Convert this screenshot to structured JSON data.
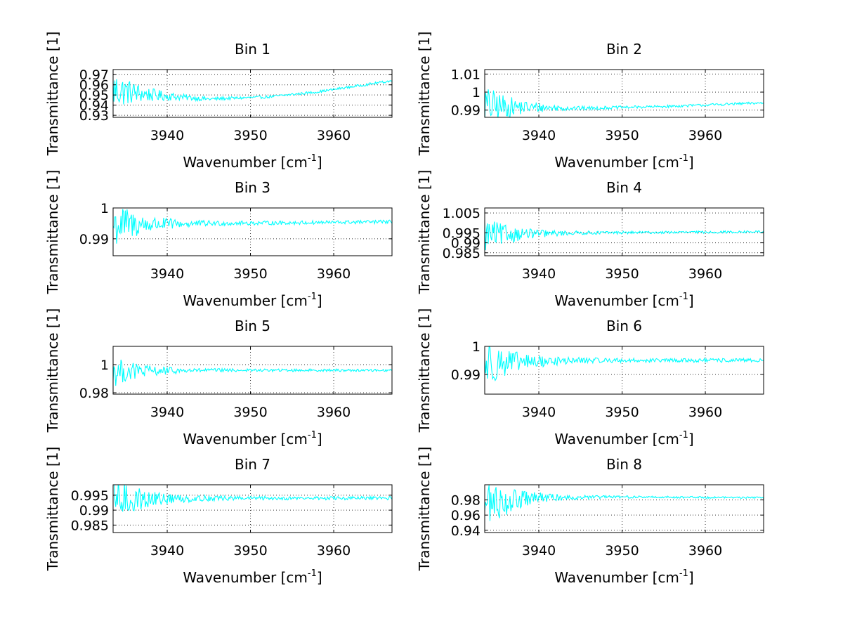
{
  "figure": {
    "background": "#ffffff",
    "line_color": "#00ffff"
  },
  "chart_data": [
    {
      "type": "line",
      "id": "bin1",
      "title": "Bin 1",
      "xlabel": "Wavenumber [cm",
      "xlabel_sup": "-1",
      "xlabel_end": "]",
      "ylabel": "Transmittance [1]",
      "xlim": [
        3933.5,
        3967
      ],
      "ylim": [
        0.928,
        0.975
      ],
      "xticks": [
        3940,
        3950,
        3960
      ],
      "xtick_labels": [
        "3940",
        "3950",
        "3960"
      ],
      "yticks": [
        0.93,
        0.94,
        0.95,
        0.96,
        0.97
      ],
      "ytick_labels": [
        "0.93",
        "0.94",
        "0.95",
        "0.96",
        "0.97"
      ],
      "grid": true,
      "trend": [
        [
          3933.5,
          0.955
        ],
        [
          3938,
          0.95
        ],
        [
          3945,
          0.946
        ],
        [
          3952,
          0.948
        ],
        [
          3958,
          0.953
        ],
        [
          3967,
          0.964
        ]
      ],
      "noise_start": 0.02,
      "noise_tail": 0.0012,
      "n_points": 320
    },
    {
      "type": "line",
      "id": "bin2",
      "title": "Bin 2",
      "xlabel": "Wavenumber [cm",
      "xlabel_sup": "-1",
      "xlabel_end": "]",
      "ylabel": "Transmittance [1]",
      "xlim": [
        3933.5,
        3967
      ],
      "ylim": [
        0.986,
        1.0125
      ],
      "xticks": [
        3940,
        3950,
        3960
      ],
      "xtick_labels": [
        "3940",
        "3950",
        "3960"
      ],
      "yticks": [
        0.99,
        1.0,
        1.01
      ],
      "ytick_labels": [
        "0.99",
        "1",
        "1.01"
      ],
      "grid": true,
      "trend": [
        [
          3933.5,
          0.992
        ],
        [
          3945,
          0.991
        ],
        [
          3955,
          0.992
        ],
        [
          3967,
          0.994
        ]
      ],
      "noise_start": 0.012,
      "noise_tail": 0.0007,
      "n_points": 320
    },
    {
      "type": "line",
      "id": "bin3",
      "title": "Bin 3",
      "xlabel": "Wavenumber [cm",
      "xlabel_sup": "-1",
      "xlabel_end": "]",
      "ylabel": "Transmittance [1]",
      "xlim": [
        3933.5,
        3967
      ],
      "ylim": [
        0.9845,
        1.0
      ],
      "xticks": [
        3940,
        3950,
        3960
      ],
      "xtick_labels": [
        "3940",
        "3950",
        "3960"
      ],
      "yticks": [
        0.99,
        1.0
      ],
      "ytick_labels": [
        "0.99",
        "1"
      ],
      "grid": true,
      "trend": [
        [
          3933.5,
          0.9945
        ],
        [
          3945,
          0.995
        ],
        [
          3955,
          0.9952
        ],
        [
          3967,
          0.9955
        ]
      ],
      "noise_start": 0.008,
      "noise_tail": 0.0006,
      "n_points": 320
    },
    {
      "type": "line",
      "id": "bin4",
      "title": "Bin 4",
      "xlabel": "Wavenumber [cm",
      "xlabel_sup": "-1",
      "xlabel_end": "]",
      "ylabel": "Transmittance [1]",
      "xlim": [
        3933.5,
        3967
      ],
      "ylim": [
        0.9835,
        1.0075
      ],
      "xticks": [
        3940,
        3950,
        3960
      ],
      "xtick_labels": [
        "3940",
        "3950",
        "3960"
      ],
      "yticks": [
        0.985,
        0.99,
        0.995,
        1.005
      ],
      "ytick_labels": [
        "0.985",
        "0.99",
        "0.995",
        "1.005"
      ],
      "grid": true,
      "trend": [
        [
          3933.5,
          0.994
        ],
        [
          3945,
          0.995
        ],
        [
          3967,
          0.9955
        ]
      ],
      "noise_start": 0.009,
      "noise_tail": 0.0006,
      "n_points": 320
    },
    {
      "type": "line",
      "id": "bin5",
      "title": "Bin 5",
      "xlabel": "Wavenumber [cm",
      "xlabel_sup": "-1",
      "xlabel_end": "]",
      "ylabel": "Transmittance [1]",
      "xlim": [
        3933.5,
        3967
      ],
      "ylim": [
        0.979,
        1.013
      ],
      "xticks": [
        3940,
        3950,
        3960
      ],
      "xtick_labels": [
        "3940",
        "3950",
        "3960"
      ],
      "yticks": [
        0.98,
        1.0
      ],
      "ytick_labels": [
        "0.98",
        "1"
      ],
      "grid": true,
      "trend": [
        [
          3933.5,
          0.995
        ],
        [
          3945,
          0.996
        ],
        [
          3967,
          0.996
        ]
      ],
      "noise_start": 0.011,
      "noise_tail": 0.0009,
      "n_points": 320
    },
    {
      "type": "line",
      "id": "bin6",
      "title": "Bin 6",
      "xlabel": "Wavenumber [cm",
      "xlabel_sup": "-1",
      "xlabel_end": "]",
      "ylabel": "Transmittance [1]",
      "xlim": [
        3933.5,
        3967
      ],
      "ylim": [
        0.983,
        1.0
      ],
      "xticks": [
        3940,
        3950,
        3960
      ],
      "xtick_labels": [
        "3940",
        "3950",
        "3960"
      ],
      "yticks": [
        0.99,
        1.0
      ],
      "ytick_labels": [
        "0.99",
        "1"
      ],
      "grid": true,
      "trend": [
        [
          3933.5,
          0.994
        ],
        [
          3945,
          0.995
        ],
        [
          3967,
          0.995
        ]
      ],
      "noise_start": 0.009,
      "noise_tail": 0.0007,
      "n_points": 320
    },
    {
      "type": "line",
      "id": "bin7",
      "title": "Bin 7",
      "xlabel": "Wavenumber [cm",
      "xlabel_sup": "-1",
      "xlabel_end": "]",
      "ylabel": "Transmittance [1]",
      "xlim": [
        3933.5,
        3967
      ],
      "ylim": [
        0.9825,
        0.9985
      ],
      "xticks": [
        3940,
        3950,
        3960
      ],
      "xtick_labels": [
        "3940",
        "3950",
        "3960"
      ],
      "yticks": [
        0.985,
        0.99,
        0.995
      ],
      "ytick_labels": [
        "0.985",
        "0.99",
        "0.995"
      ],
      "grid": true,
      "trend": [
        [
          3933.5,
          0.9935
        ],
        [
          3945,
          0.994
        ],
        [
          3967,
          0.994
        ]
      ],
      "noise_start": 0.008,
      "noise_tail": 0.0006,
      "n_points": 320
    },
    {
      "type": "line",
      "id": "bin8",
      "title": "Bin 8",
      "xlabel": "Wavenumber [cm",
      "xlabel_sup": "-1",
      "xlabel_end": "]",
      "ylabel": "Transmittance [1]",
      "xlim": [
        3933.5,
        3967
      ],
      "ylim": [
        0.937,
        1.0
      ],
      "xticks": [
        3940,
        3950,
        3960
      ],
      "xtick_labels": [
        "3940",
        "3950",
        "3960"
      ],
      "yticks": [
        0.94,
        0.96,
        0.98
      ],
      "ytick_labels": [
        "0.94",
        "0.96",
        "0.98"
      ],
      "grid": true,
      "trend": [
        [
          3933.5,
          0.975
        ],
        [
          3940,
          0.983
        ],
        [
          3950,
          0.984
        ],
        [
          3967,
          0.983
        ]
      ],
      "noise_start": 0.035,
      "noise_tail": 0.0013,
      "n_points": 320
    }
  ]
}
